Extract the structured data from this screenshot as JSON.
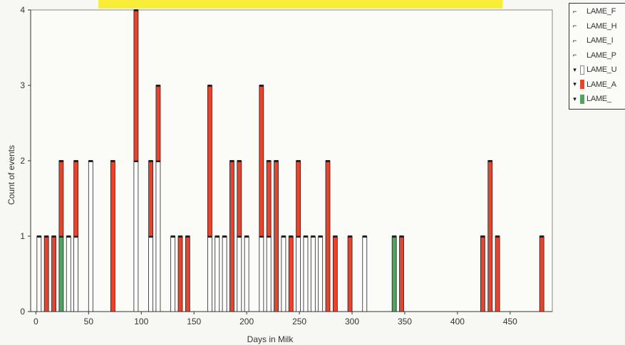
{
  "chart_data": {
    "type": "bar",
    "xlabel": "Days in Milk",
    "ylabel": "Count of events",
    "xlim": [
      -5,
      490
    ],
    "ylim": [
      0,
      4
    ],
    "xticks": [
      0,
      50,
      100,
      150,
      200,
      250,
      300,
      350,
      400,
      450
    ],
    "yticks": [
      0,
      1,
      2,
      3,
      4
    ],
    "grid": false,
    "legend_position": "right",
    "series_colors": {
      "LAME_U": "#ffffff",
      "LAME_A": "#e8432c",
      "LAME_": "#4fa55f"
    },
    "stacks": [
      {
        "x": 3,
        "values": {
          "LAME_U": 1
        }
      },
      {
        "x": 10,
        "values": {
          "LAME_A": 1
        }
      },
      {
        "x": 17,
        "values": {
          "LAME_A": 1
        }
      },
      {
        "x": 24,
        "values": {
          "LAME_A": 1,
          "LAME_": 1
        }
      },
      {
        "x": 31,
        "values": {
          "LAME_U": 1
        }
      },
      {
        "x": 38,
        "values": {
          "LAME_U": 1,
          "LAME_A": 1
        }
      },
      {
        "x": 52,
        "values": {
          "LAME_U": 2
        }
      },
      {
        "x": 73,
        "values": {
          "LAME_A": 2
        }
      },
      {
        "x": 95,
        "values": {
          "LAME_U": 2,
          "LAME_A": 2
        }
      },
      {
        "x": 109,
        "values": {
          "LAME_U": 1,
          "LAME_A": 1
        }
      },
      {
        "x": 116,
        "values": {
          "LAME_U": 2,
          "LAME_A": 1
        }
      },
      {
        "x": 130,
        "values": {
          "LAME_U": 1
        }
      },
      {
        "x": 137,
        "values": {
          "LAME_A": 1
        }
      },
      {
        "x": 144,
        "values": {
          "LAME_A": 1
        }
      },
      {
        "x": 165,
        "values": {
          "LAME_U": 1,
          "LAME_A": 2
        }
      },
      {
        "x": 172,
        "values": {
          "LAME_U": 1
        }
      },
      {
        "x": 179,
        "values": {
          "LAME_U": 1
        }
      },
      {
        "x": 186,
        "values": {
          "LAME_A": 2
        }
      },
      {
        "x": 193,
        "values": {
          "LAME_U": 1,
          "LAME_A": 1
        }
      },
      {
        "x": 200,
        "values": {
          "LAME_U": 1
        }
      },
      {
        "x": 214,
        "values": {
          "LAME_U": 1,
          "LAME_A": 2
        }
      },
      {
        "x": 221,
        "values": {
          "LAME_U": 1,
          "LAME_A": 1
        }
      },
      {
        "x": 228,
        "values": {
          "LAME_A": 2
        }
      },
      {
        "x": 235,
        "values": {
          "LAME_U": 1
        }
      },
      {
        "x": 242,
        "values": {
          "LAME_A": 1
        }
      },
      {
        "x": 249,
        "values": {
          "LAME_U": 1,
          "LAME_A": 1
        }
      },
      {
        "x": 256,
        "values": {
          "LAME_U": 1
        }
      },
      {
        "x": 263,
        "values": {
          "LAME_U": 1
        }
      },
      {
        "x": 270,
        "values": {
          "LAME_U": 1
        }
      },
      {
        "x": 277,
        "values": {
          "LAME_A": 2
        }
      },
      {
        "x": 284,
        "values": {
          "LAME_A": 1
        }
      },
      {
        "x": 298,
        "values": {
          "LAME_A": 1
        }
      },
      {
        "x": 312,
        "values": {
          "LAME_U": 1
        }
      },
      {
        "x": 340,
        "values": {
          "LAME_": 1
        }
      },
      {
        "x": 347,
        "values": {
          "LAME_A": 1
        }
      },
      {
        "x": 424,
        "values": {
          "LAME_A": 1
        }
      },
      {
        "x": 431,
        "values": {
          "LAME_A": 2
        }
      },
      {
        "x": 438,
        "values": {
          "LAME_A": 1
        }
      },
      {
        "x": 480,
        "values": {
          "LAME_A": 1
        }
      }
    ],
    "stack_order": [
      "LAME_U",
      "LAME_",
      "LAME_A"
    ]
  },
  "legend": {
    "items": [
      {
        "label": "LAME_F",
        "checked": false,
        "swatch": ""
      },
      {
        "label": "LAME_H",
        "checked": false,
        "swatch": ""
      },
      {
        "label": "LAME_I",
        "checked": false,
        "swatch": ""
      },
      {
        "label": "LAME_P",
        "checked": false,
        "swatch": ""
      },
      {
        "label": "LAME_U",
        "checked": true,
        "swatch": "#ffffff"
      },
      {
        "label": "LAME_A",
        "checked": true,
        "swatch": "#e8432c"
      },
      {
        "label": "LAME_",
        "checked": true,
        "swatch": "#4fa55f"
      }
    ]
  }
}
